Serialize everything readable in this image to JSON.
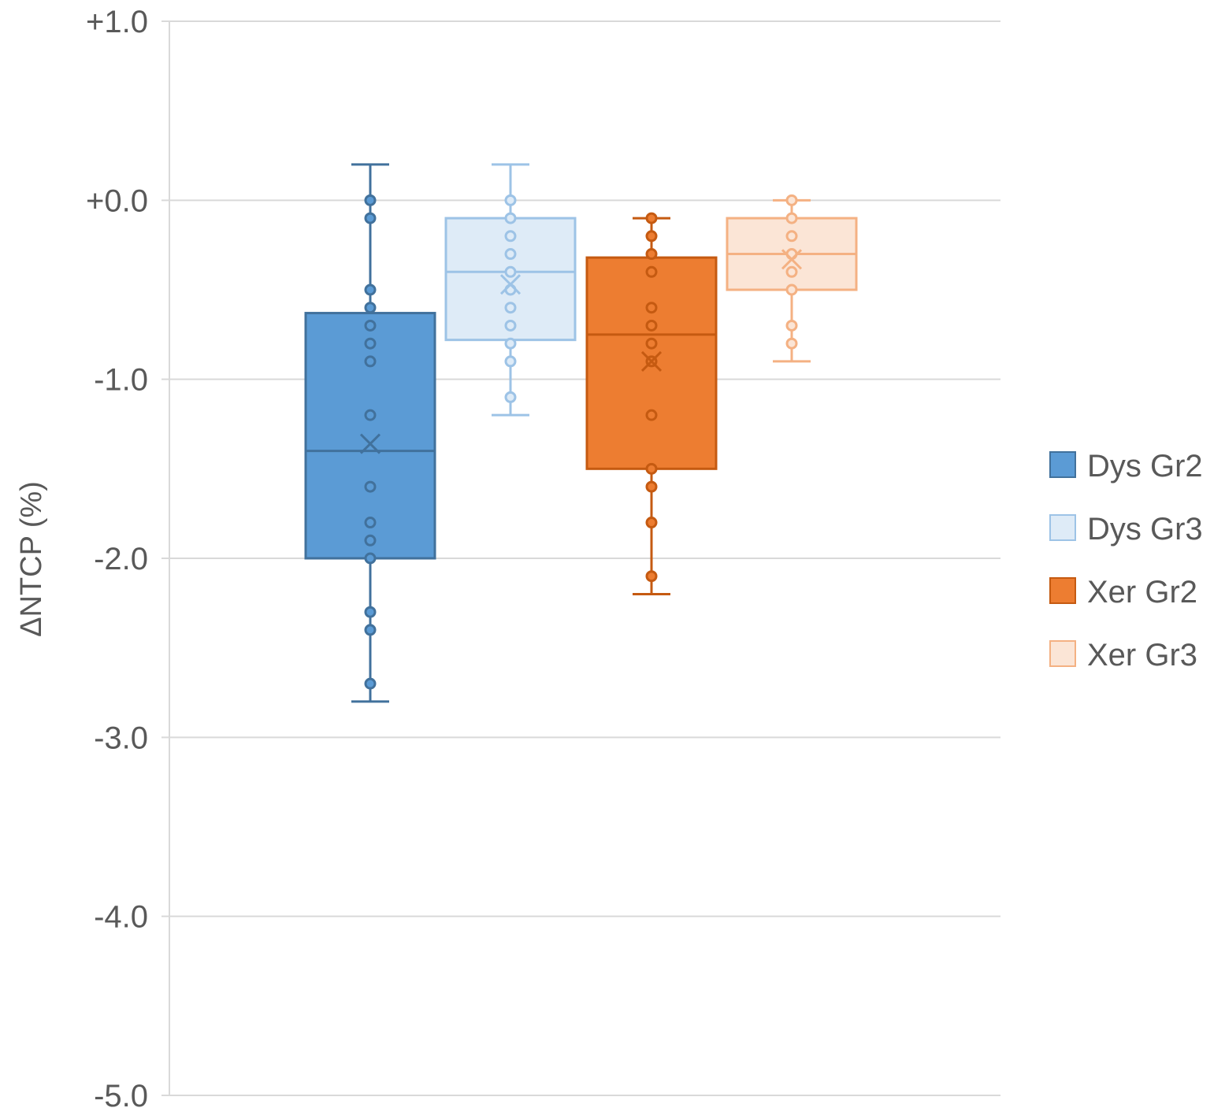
{
  "chart_data": {
    "type": "box",
    "title": "",
    "xlabel": "",
    "ylabel": "ΔNTCP (%)",
    "ylim": [
      -5.0,
      1.0
    ],
    "yticks": [
      1.0,
      0.0,
      -1.0,
      -2.0,
      -3.0,
      -4.0,
      -5.0
    ],
    "ytick_labels": [
      "+1.0",
      "+0.0",
      "-1.0",
      "-2.0",
      "-3.0",
      "-4.0",
      "-5.0"
    ],
    "grid": true,
    "legend_position": "right",
    "series": [
      {
        "name": "Dys Gr2",
        "color": "#5B9BD5",
        "stroke": "#41719C",
        "whisker_high": 0.2,
        "q3": -0.63,
        "median": -1.4,
        "mean": -1.36,
        "q1": -2.0,
        "whisker_low": -2.8,
        "points": [
          0.0,
          -0.1,
          -0.5,
          -0.6,
          -0.7,
          -0.8,
          -0.9,
          -1.2,
          -1.6,
          -1.8,
          -1.9,
          -2.0,
          -2.3,
          -2.4,
          -2.7
        ]
      },
      {
        "name": "Dys Gr3",
        "color": "#DEEBF7",
        "stroke": "#9DC3E6",
        "whisker_high": 0.2,
        "q3": -0.1,
        "median": -0.4,
        "mean": -0.47,
        "q1": -0.78,
        "whisker_low": -1.2,
        "points": [
          0.0,
          -0.1,
          -0.2,
          -0.3,
          -0.4,
          -0.5,
          -0.6,
          -0.7,
          -0.8,
          -0.9,
          -1.1
        ]
      },
      {
        "name": "Xer Gr2",
        "color": "#ED7D31",
        "stroke": "#C55A11",
        "whisker_high": -0.1,
        "q3": -0.32,
        "median": -0.75,
        "mean": -0.9,
        "q1": -1.5,
        "whisker_low": -2.2,
        "points": [
          -0.1,
          -0.2,
          -0.3,
          -0.4,
          -0.6,
          -0.7,
          -0.8,
          -0.9,
          -1.2,
          -1.5,
          -1.6,
          -1.8,
          -2.1
        ]
      },
      {
        "name": "Xer Gr3",
        "color": "#FBE5D6",
        "stroke": "#F4B183",
        "whisker_high": 0.0,
        "q3": -0.1,
        "median": -0.3,
        "mean": -0.33,
        "q1": -0.5,
        "whisker_low": -0.9,
        "points": [
          0.0,
          -0.1,
          -0.2,
          -0.3,
          -0.4,
          -0.5,
          -0.7,
          -0.8
        ]
      }
    ]
  }
}
